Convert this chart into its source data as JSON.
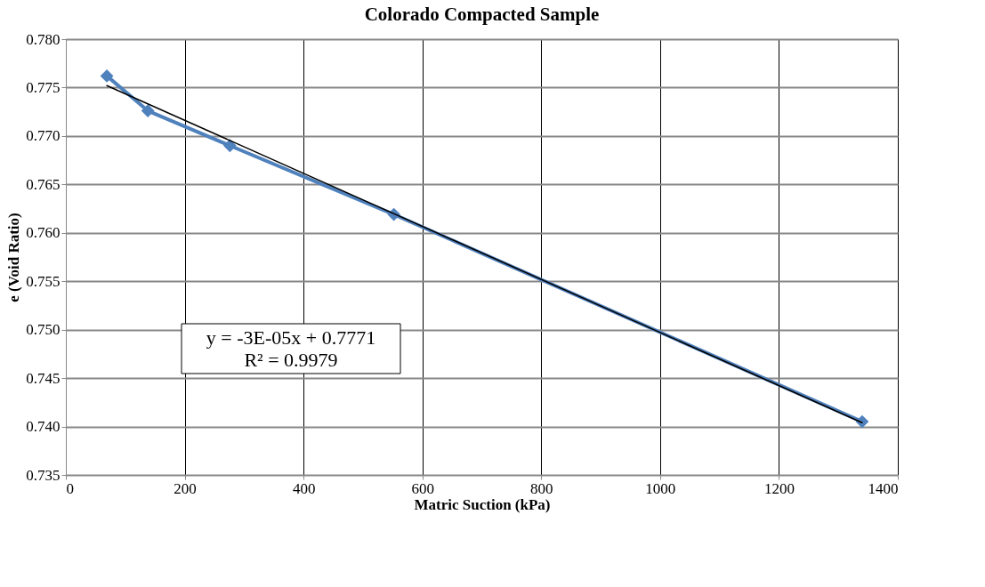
{
  "chart_data": {
    "type": "line",
    "title": "Colorado Compacted Sample",
    "xlabel": "Matric Suction (kPa)",
    "ylabel": "e (Void Ratio)",
    "x": [
      69,
      138,
      276,
      552,
      1340
    ],
    "series": [
      {
        "color": "#4f81bd",
        "values": [
          0.7762,
          0.7726,
          0.769,
          0.7619,
          0.7405
        ],
        "marker": "diamond"
      },
      {
        "type": "line",
        "color": "#000000",
        "x": [
          69,
          1340
        ],
        "values": [
          0.7752,
          0.7404
        ],
        "marker": "none"
      }
    ],
    "xlim": [
      0,
      1400
    ],
    "xticks": [
      0,
      200,
      400,
      600,
      800,
      1000,
      1200,
      1400
    ],
    "ylim": [
      0.735,
      0.78
    ],
    "yticks": [
      {
        "value": 0.735,
        "label": "0.735"
      },
      {
        "value": 0.74,
        "label": "0.740"
      },
      0.745,
      {
        "value": 0.75,
        "label": "0.750"
      },
      0.755,
      {
        "value": 0.76,
        "label": "0.760"
      },
      0.765,
      {
        "value": 0.77,
        "label": "0.770"
      },
      0.775,
      {
        "value": 0.78,
        "label": "0.780"
      }
    ],
    "grid": true,
    "annotations": [
      "y = -3E-05x + 0.7771",
      "R² = 0.9979"
    ]
  }
}
